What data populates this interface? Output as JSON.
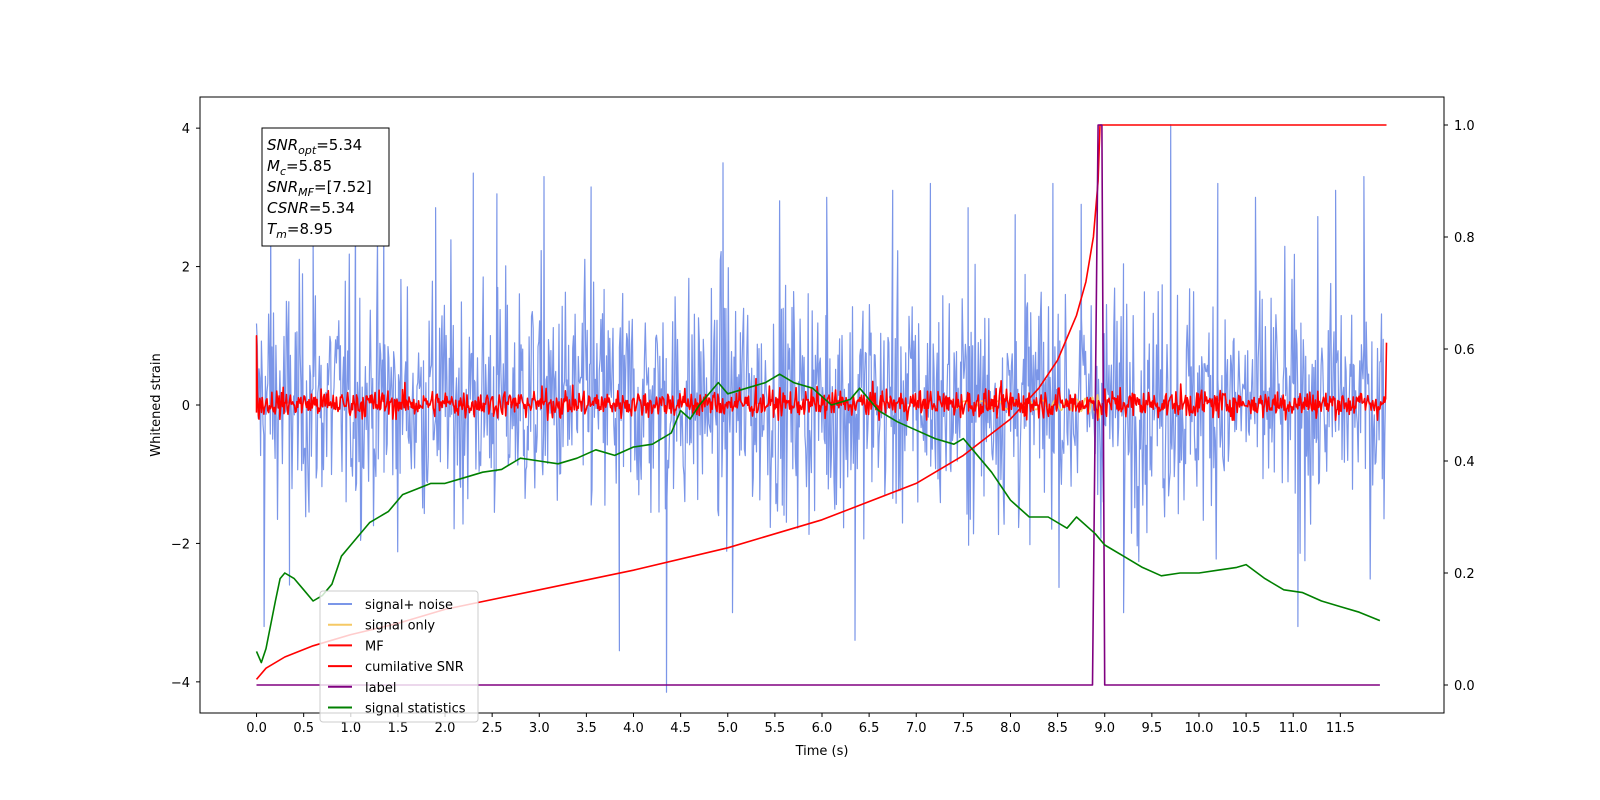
{
  "chart_data": {
    "type": "line",
    "title": "",
    "xlabel": "Time (s)",
    "ylabel": "Whitened strain",
    "y2label": "",
    "xlim": [
      -0.6,
      12.6
    ],
    "ylim": [
      -4.45,
      4.45
    ],
    "y2lim": [
      -0.05,
      1.05
    ],
    "xticks": [
      0.0,
      0.5,
      1.0,
      1.5,
      2.0,
      2.5,
      3.0,
      3.5,
      4.0,
      4.5,
      5.0,
      5.5,
      6.0,
      6.5,
      7.0,
      7.5,
      8.0,
      8.5,
      9.0,
      9.5,
      10.0,
      10.5,
      11.0,
      11.5
    ],
    "xtick_labels": [
      "0.0",
      "0.5",
      "1.0",
      "1.5",
      "2.0",
      "2.5",
      "3.0",
      "3.5",
      "4.0",
      "4.5",
      "5.0",
      "5.5",
      "6.0",
      "6.5",
      "7.0",
      "7.5",
      "8.0",
      "8.5",
      "9.0",
      "9.5",
      "10.0",
      "10.5",
      "11.0",
      "11.5"
    ],
    "yticks": [
      -4,
      -2,
      0,
      2,
      4
    ],
    "ytick_labels": [
      "−4",
      "−2",
      "0",
      "2",
      "4"
    ],
    "y2ticks": [
      0.0,
      0.2,
      0.4,
      0.6,
      0.8,
      1.0
    ],
    "y2tick_labels": [
      "0.0",
      "0.2",
      "0.4",
      "0.6",
      "0.8",
      "1.0"
    ],
    "grid": false,
    "legend_position": "lower-left",
    "noise_model": {
      "t_start": 0.0,
      "t_end": 11.98,
      "mean": 0.05,
      "std": 0.85,
      "envelope": [
        -3.5,
        4.1
      ]
    },
    "series": [
      {
        "name": "signal+ noise",
        "color": "#7b96e8",
        "axis": "left",
        "kind": "noise",
        "peaks": [
          [
            0.08,
            -3.2
          ],
          [
            0.15,
            2.9
          ],
          [
            0.35,
            -2.6
          ],
          [
            0.6,
            2.5
          ],
          [
            1.05,
            2.9
          ],
          [
            1.35,
            2.8
          ],
          [
            1.9,
            2.85
          ],
          [
            2.3,
            3.35
          ],
          [
            2.55,
            3.05
          ],
          [
            3.05,
            3.3
          ],
          [
            3.55,
            3.15
          ],
          [
            3.85,
            -3.55
          ],
          [
            4.35,
            -4.15
          ],
          [
            4.95,
            3.5
          ],
          [
            5.05,
            -3.0
          ],
          [
            5.55,
            2.95
          ],
          [
            6.05,
            3.0
          ],
          [
            6.35,
            -3.4
          ],
          [
            6.75,
            3.1
          ],
          [
            7.15,
            3.2
          ],
          [
            7.55,
            2.85
          ],
          [
            8.05,
            2.75
          ],
          [
            8.45,
            3.2
          ],
          [
            8.75,
            2.9
          ],
          [
            9.2,
            -3.0
          ],
          [
            9.7,
            4.05
          ],
          [
            10.2,
            3.2
          ],
          [
            10.6,
            3.0
          ],
          [
            11.05,
            -3.2
          ],
          [
            11.45,
            3.1
          ],
          [
            11.75,
            3.3
          ]
        ]
      },
      {
        "name": "signal only",
        "color": "#f5c965",
        "axis": "left",
        "kind": "chirp",
        "t_merge": 8.95
      },
      {
        "name": "MF",
        "color": "#ff0000",
        "axis": "left",
        "kind": "noise",
        "peaks": [
          [
            0.0,
            1.0
          ],
          [
            0.02,
            -0.15
          ],
          [
            11.99,
            0.9
          ],
          [
            5.3,
            0.38
          ],
          [
            7.9,
            0.35
          ]
        ]
      },
      {
        "name": "cumilative SNR",
        "color": "#ff0000",
        "axis": "right",
        "points": [
          [
            0.0,
            0.01
          ],
          [
            0.1,
            0.03
          ],
          [
            0.3,
            0.05
          ],
          [
            0.6,
            0.07
          ],
          [
            1.0,
            0.09
          ],
          [
            1.5,
            0.11
          ],
          [
            2.0,
            0.135
          ],
          [
            3.0,
            0.17
          ],
          [
            4.0,
            0.205
          ],
          [
            5.0,
            0.245
          ],
          [
            6.0,
            0.295
          ],
          [
            7.0,
            0.36
          ],
          [
            7.5,
            0.41
          ],
          [
            8.0,
            0.475
          ],
          [
            8.3,
            0.53
          ],
          [
            8.5,
            0.58
          ],
          [
            8.7,
            0.66
          ],
          [
            8.8,
            0.72
          ],
          [
            8.88,
            0.8
          ],
          [
            8.93,
            0.9
          ],
          [
            8.95,
            1.0
          ],
          [
            9.2,
            1.0
          ],
          [
            10.0,
            1.0
          ],
          [
            11.0,
            1.0
          ],
          [
            11.99,
            1.0
          ]
        ]
      },
      {
        "name": "label",
        "color": "#800080",
        "axis": "right",
        "points": [
          [
            0.0,
            0.0
          ],
          [
            8.87,
            0.0
          ],
          [
            8.93,
            1.0
          ],
          [
            8.97,
            1.0
          ],
          [
            9.0,
            0.0
          ],
          [
            11.92,
            0.0
          ]
        ]
      },
      {
        "name": "signal statistics",
        "color": "#008000",
        "axis": "right",
        "points": [
          [
            0.0,
            0.06
          ],
          [
            0.05,
            0.04
          ],
          [
            0.1,
            0.065
          ],
          [
            0.2,
            0.15
          ],
          [
            0.25,
            0.19
          ],
          [
            0.3,
            0.2
          ],
          [
            0.4,
            0.19
          ],
          [
            0.5,
            0.17
          ],
          [
            0.6,
            0.15
          ],
          [
            0.7,
            0.16
          ],
          [
            0.8,
            0.18
          ],
          [
            0.9,
            0.23
          ],
          [
            1.0,
            0.25
          ],
          [
            1.2,
            0.29
          ],
          [
            1.4,
            0.31
          ],
          [
            1.55,
            0.34
          ],
          [
            1.7,
            0.35
          ],
          [
            1.85,
            0.36
          ],
          [
            2.0,
            0.36
          ],
          [
            2.2,
            0.37
          ],
          [
            2.4,
            0.38
          ],
          [
            2.6,
            0.385
          ],
          [
            2.75,
            0.4
          ],
          [
            2.8,
            0.405
          ],
          [
            3.0,
            0.4
          ],
          [
            3.2,
            0.395
          ],
          [
            3.4,
            0.405
          ],
          [
            3.6,
            0.42
          ],
          [
            3.8,
            0.41
          ],
          [
            4.0,
            0.425
          ],
          [
            4.2,
            0.43
          ],
          [
            4.4,
            0.45
          ],
          [
            4.5,
            0.49
          ],
          [
            4.6,
            0.475
          ],
          [
            4.7,
            0.5
          ],
          [
            4.9,
            0.54
          ],
          [
            5.0,
            0.52
          ],
          [
            5.2,
            0.53
          ],
          [
            5.4,
            0.54
          ],
          [
            5.55,
            0.555
          ],
          [
            5.7,
            0.54
          ],
          [
            5.9,
            0.53
          ],
          [
            6.1,
            0.5
          ],
          [
            6.3,
            0.51
          ],
          [
            6.4,
            0.53
          ],
          [
            6.6,
            0.49
          ],
          [
            6.8,
            0.47
          ],
          [
            7.0,
            0.455
          ],
          [
            7.2,
            0.44
          ],
          [
            7.4,
            0.43
          ],
          [
            7.5,
            0.44
          ],
          [
            7.6,
            0.42
          ],
          [
            7.8,
            0.38
          ],
          [
            8.0,
            0.33
          ],
          [
            8.2,
            0.3
          ],
          [
            8.4,
            0.3
          ],
          [
            8.6,
            0.28
          ],
          [
            8.7,
            0.3
          ],
          [
            8.9,
            0.27
          ],
          [
            9.0,
            0.25
          ],
          [
            9.2,
            0.23
          ],
          [
            9.4,
            0.21
          ],
          [
            9.6,
            0.195
          ],
          [
            9.8,
            0.2
          ],
          [
            10.0,
            0.2
          ],
          [
            10.2,
            0.205
          ],
          [
            10.4,
            0.21
          ],
          [
            10.5,
            0.215
          ],
          [
            10.7,
            0.19
          ],
          [
            10.9,
            0.17
          ],
          [
            11.1,
            0.165
          ],
          [
            11.3,
            0.15
          ],
          [
            11.5,
            0.14
          ],
          [
            11.7,
            0.13
          ],
          [
            11.92,
            0.115
          ]
        ]
      }
    ],
    "annotation": {
      "lines": [
        {
          "base": "SNR",
          "sub": "opt",
          "rest": "=5.34"
        },
        {
          "base": "M",
          "sub": "c",
          "rest": "=5.85"
        },
        {
          "base": "SNR",
          "sub": "MF",
          "rest": "=[7.52]"
        },
        {
          "base": "CSNR",
          "sub": "",
          "rest": "=5.34"
        },
        {
          "base": "T",
          "sub": "m",
          "rest": "=8.95"
        }
      ]
    }
  }
}
